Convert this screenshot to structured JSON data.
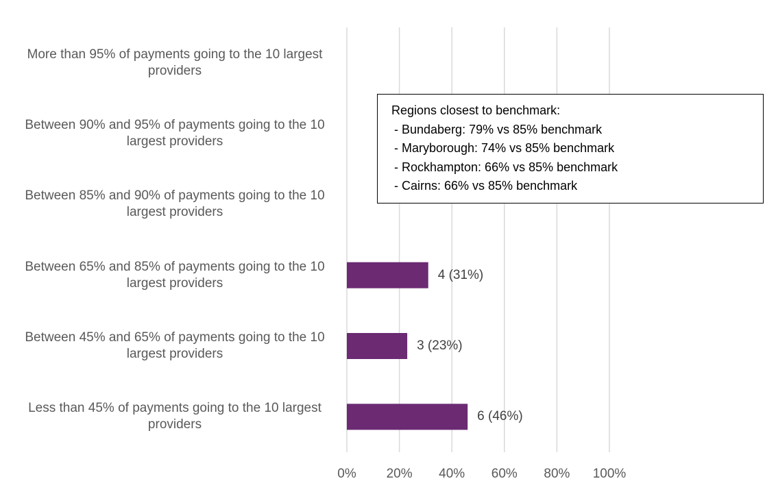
{
  "chart_data": {
    "type": "bar",
    "orientation": "horizontal",
    "categories": [
      "More than 95% of payments going to the 10 largest providers",
      "Between 90% and 95% of payments going to the 10 largest providers",
      "Between 85% and 90% of payments going to the 10 largest providers",
      "Between 65% and 85% of payments going to the 10 largest providers",
      "Between 45% and 65% of payments going to the 10 largest providers",
      "Less than 45% of payments going to the 10 largest providers"
    ],
    "values": [
      0,
      0,
      0,
      31,
      23,
      46
    ],
    "value_labels": [
      null,
      null,
      null,
      "4 (31%)",
      "3 (23%)",
      "6 (46%)"
    ],
    "color": "#6b2a72",
    "xlim": [
      0,
      100
    ],
    "xticks": [
      {
        "value": 0,
        "label": "0%"
      },
      {
        "value": 20,
        "label": "20%"
      },
      {
        "value": 40,
        "label": "40%"
      },
      {
        "value": 60,
        "label": "60%"
      },
      {
        "value": 80,
        "label": "80%"
      },
      {
        "value": 100,
        "label": "100%"
      }
    ],
    "grid": true,
    "annotation": [
      "Regions closest to benchmark:",
      "- Bundaberg: 79% vs 85% benchmark",
      "- Maryborough: 74% vs 85% benchmark",
      "- Rockhampton: 66% vs 85% benchmark",
      "- Cairns: 66% vs 85% benchmark"
    ]
  }
}
